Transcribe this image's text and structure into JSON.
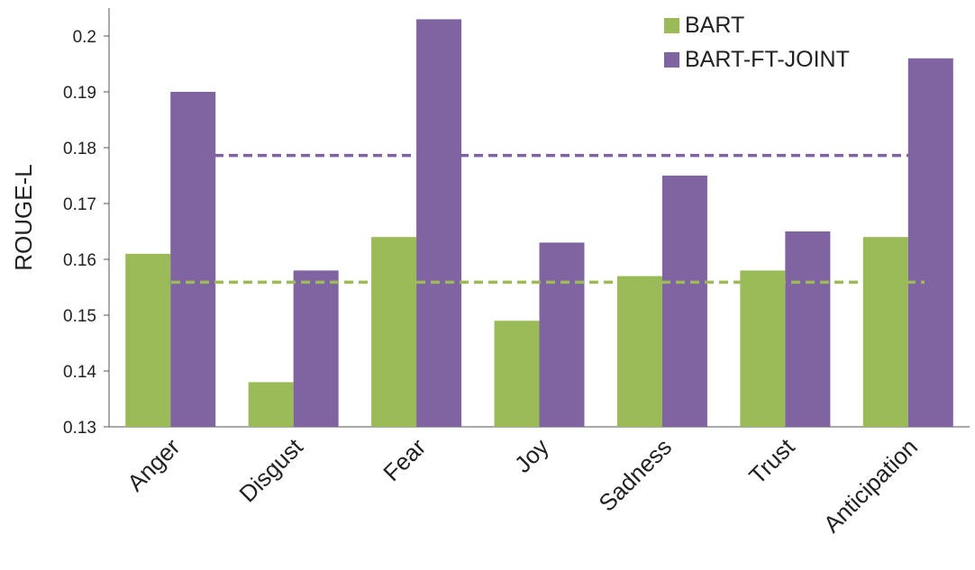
{
  "chart_data": {
    "type": "bar",
    "title": "",
    "xlabel": "",
    "ylabel": "ROUGE-L",
    "ylim": [
      0.13,
      0.205
    ],
    "yticks": [
      "0.13",
      "0.14",
      "0.15",
      "0.16",
      "0.17",
      "0.18",
      "0.19",
      "0.2"
    ],
    "categories": [
      "Anger",
      "Disgust",
      "Fear",
      "Joy",
      "Sadness",
      "Trust",
      "Anticipation"
    ],
    "series": [
      {
        "name": "BART",
        "color": "#9bbb59",
        "values": [
          0.161,
          0.138,
          0.164,
          0.149,
          0.157,
          0.158,
          0.164
        ],
        "mean_line": 0.1559
      },
      {
        "name": "BART-FT-JOINT",
        "color": "#8064a2",
        "values": [
          0.19,
          0.158,
          0.203,
          0.163,
          0.175,
          0.165,
          0.196
        ],
        "mean_line": 0.1786
      }
    ],
    "legend_position": "top-right",
    "grid": false
  }
}
